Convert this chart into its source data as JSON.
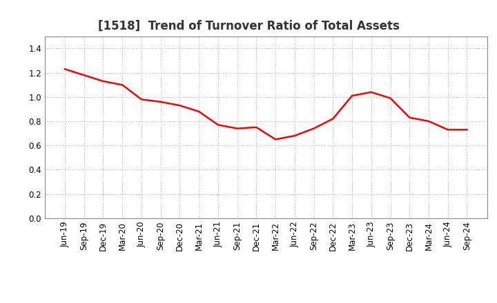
{
  "title": "[1518]  Trend of Turnover Ratio of Total Assets",
  "x_labels": [
    "Jun-19",
    "Sep-19",
    "Dec-19",
    "Mar-20",
    "Jun-20",
    "Sep-20",
    "Dec-20",
    "Mar-21",
    "Jun-21",
    "Sep-21",
    "Dec-21",
    "Mar-22",
    "Jun-22",
    "Sep-22",
    "Dec-22",
    "Mar-23",
    "Jun-23",
    "Sep-23",
    "Dec-23",
    "Mar-24",
    "Jun-24",
    "Sep-24"
  ],
  "y_values": [
    1.23,
    1.18,
    1.13,
    1.1,
    0.98,
    0.96,
    0.93,
    0.88,
    0.77,
    0.74,
    0.75,
    0.65,
    0.68,
    0.74,
    0.82,
    1.01,
    1.04,
    0.99,
    0.83,
    0.8,
    0.73,
    0.73
  ],
  "line_color": "#FF0000",
  "line_width": 1.8,
  "ylim": [
    0.0,
    1.5
  ],
  "yticks": [
    0.0,
    0.2,
    0.4,
    0.6,
    0.8,
    1.0,
    1.2,
    1.4
  ],
  "background_color": "#FFFFFF",
  "grid_color": "#BBBBBB",
  "title_fontsize": 12,
  "tick_fontsize": 8.5
}
